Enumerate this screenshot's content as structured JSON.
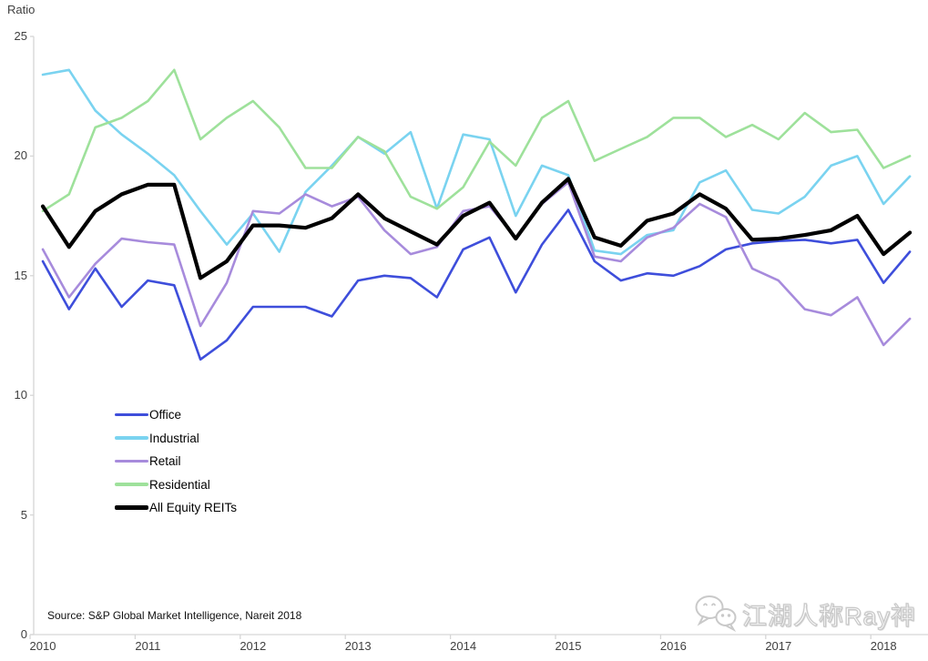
{
  "title": "Ratio",
  "source": "Source: S&P Global Market Intelligence, Nareit 2018",
  "watermark": {
    "text": "江湖人称Ray神",
    "icon": "wechat-chat-bubbles"
  },
  "colors": {
    "axis": "#d6d6d6",
    "axis_text": "#404040",
    "office": "#3e4edb",
    "industrial": "#7ad3f0",
    "retail": "#a78bdc",
    "residential": "#9ee19b",
    "all_equity_reits": "#000000"
  },
  "axis": {
    "y_ticks": [
      25,
      20,
      15,
      10,
      5,
      0
    ],
    "x_labels": [
      "2010",
      "2011",
      "2012",
      "2013",
      "2014",
      "2015",
      "2016",
      "2017",
      "2018"
    ]
  },
  "chart_data": {
    "type": "line",
    "title": "Ratio",
    "xlabel": "",
    "ylabel": "Ratio",
    "ylim": [
      0,
      25
    ],
    "grid": false,
    "legend_position": "middle-left",
    "x": [
      "2010 Q1",
      "2010 Q2",
      "2010 Q3",
      "2010 Q4",
      "2011 Q1",
      "2011 Q2",
      "2011 Q3",
      "2011 Q4",
      "2012 Q1",
      "2012 Q2",
      "2012 Q3",
      "2012 Q4",
      "2013 Q1",
      "2013 Q2",
      "2013 Q3",
      "2013 Q4",
      "2014 Q1",
      "2014 Q2",
      "2014 Q3",
      "2014 Q4",
      "2015 Q1",
      "2015 Q2",
      "2015 Q3",
      "2015 Q4",
      "2016 Q1",
      "2016 Q2",
      "2016 Q3",
      "2016 Q4",
      "2017 Q1",
      "2017 Q2",
      "2017 Q3",
      "2017 Q4",
      "2018 Q1",
      "2018 Q2"
    ],
    "series": [
      {
        "name": "Office",
        "color": "#3e4edb",
        "width": 2.6,
        "values": [
          15.6,
          13.6,
          15.3,
          13.7,
          14.8,
          14.6,
          11.5,
          12.3,
          13.7,
          13.7,
          13.7,
          13.3,
          14.8,
          15.0,
          14.9,
          14.1,
          16.1,
          16.6,
          14.3,
          16.3,
          17.75,
          15.6,
          14.8,
          15.1,
          15.0,
          15.4,
          16.1,
          16.35,
          16.45,
          16.5,
          16.35,
          16.5,
          14.7,
          16.0
        ]
      },
      {
        "name": "Industrial",
        "color": "#7ad3f0",
        "width": 2.6,
        "values": [
          23.4,
          23.6,
          21.9,
          20.9,
          20.1,
          19.2,
          17.7,
          16.3,
          17.6,
          16.0,
          18.5,
          19.6,
          20.8,
          20.1,
          21.0,
          17.8,
          20.9,
          20.7,
          17.5,
          19.6,
          19.2,
          16.05,
          15.9,
          16.7,
          16.9,
          18.9,
          19.4,
          17.75,
          17.6,
          18.3,
          19.6,
          20.0,
          18.0,
          19.15
        ]
      },
      {
        "name": "Retail",
        "color": "#a78bdc",
        "width": 2.6,
        "values": [
          16.1,
          14.1,
          15.5,
          16.55,
          16.4,
          16.3,
          12.9,
          14.7,
          17.7,
          17.6,
          18.4,
          17.9,
          18.3,
          16.9,
          15.9,
          16.2,
          17.7,
          17.9,
          16.6,
          18.0,
          18.9,
          15.8,
          15.6,
          16.6,
          17.0,
          18.0,
          17.45,
          15.3,
          14.8,
          13.6,
          13.35,
          14.1,
          12.1,
          13.2
        ]
      },
      {
        "name": "Residential",
        "color": "#9ee19b",
        "width": 2.6,
        "values": [
          17.7,
          18.4,
          21.2,
          21.6,
          22.3,
          23.6,
          20.7,
          21.6,
          22.3,
          21.2,
          19.5,
          19.5,
          20.8,
          20.2,
          18.3,
          17.8,
          18.7,
          20.6,
          19.6,
          21.6,
          22.3,
          19.8,
          20.3,
          20.8,
          21.6,
          21.6,
          20.8,
          21.3,
          20.7,
          21.8,
          21.0,
          21.1,
          19.5,
          20.0
        ]
      },
      {
        "name": "All Equity REITs",
        "color": "#000000",
        "width": 4.2,
        "values": [
          17.9,
          16.2,
          17.7,
          18.4,
          18.8,
          18.8,
          14.9,
          15.6,
          17.1,
          17.1,
          17.0,
          17.4,
          18.4,
          17.4,
          16.85,
          16.3,
          17.5,
          18.05,
          16.55,
          18.05,
          19.05,
          16.6,
          16.25,
          17.3,
          17.6,
          18.4,
          17.8,
          16.5,
          16.55,
          16.7,
          16.9,
          17.5,
          15.9,
          16.8
        ]
      }
    ]
  }
}
